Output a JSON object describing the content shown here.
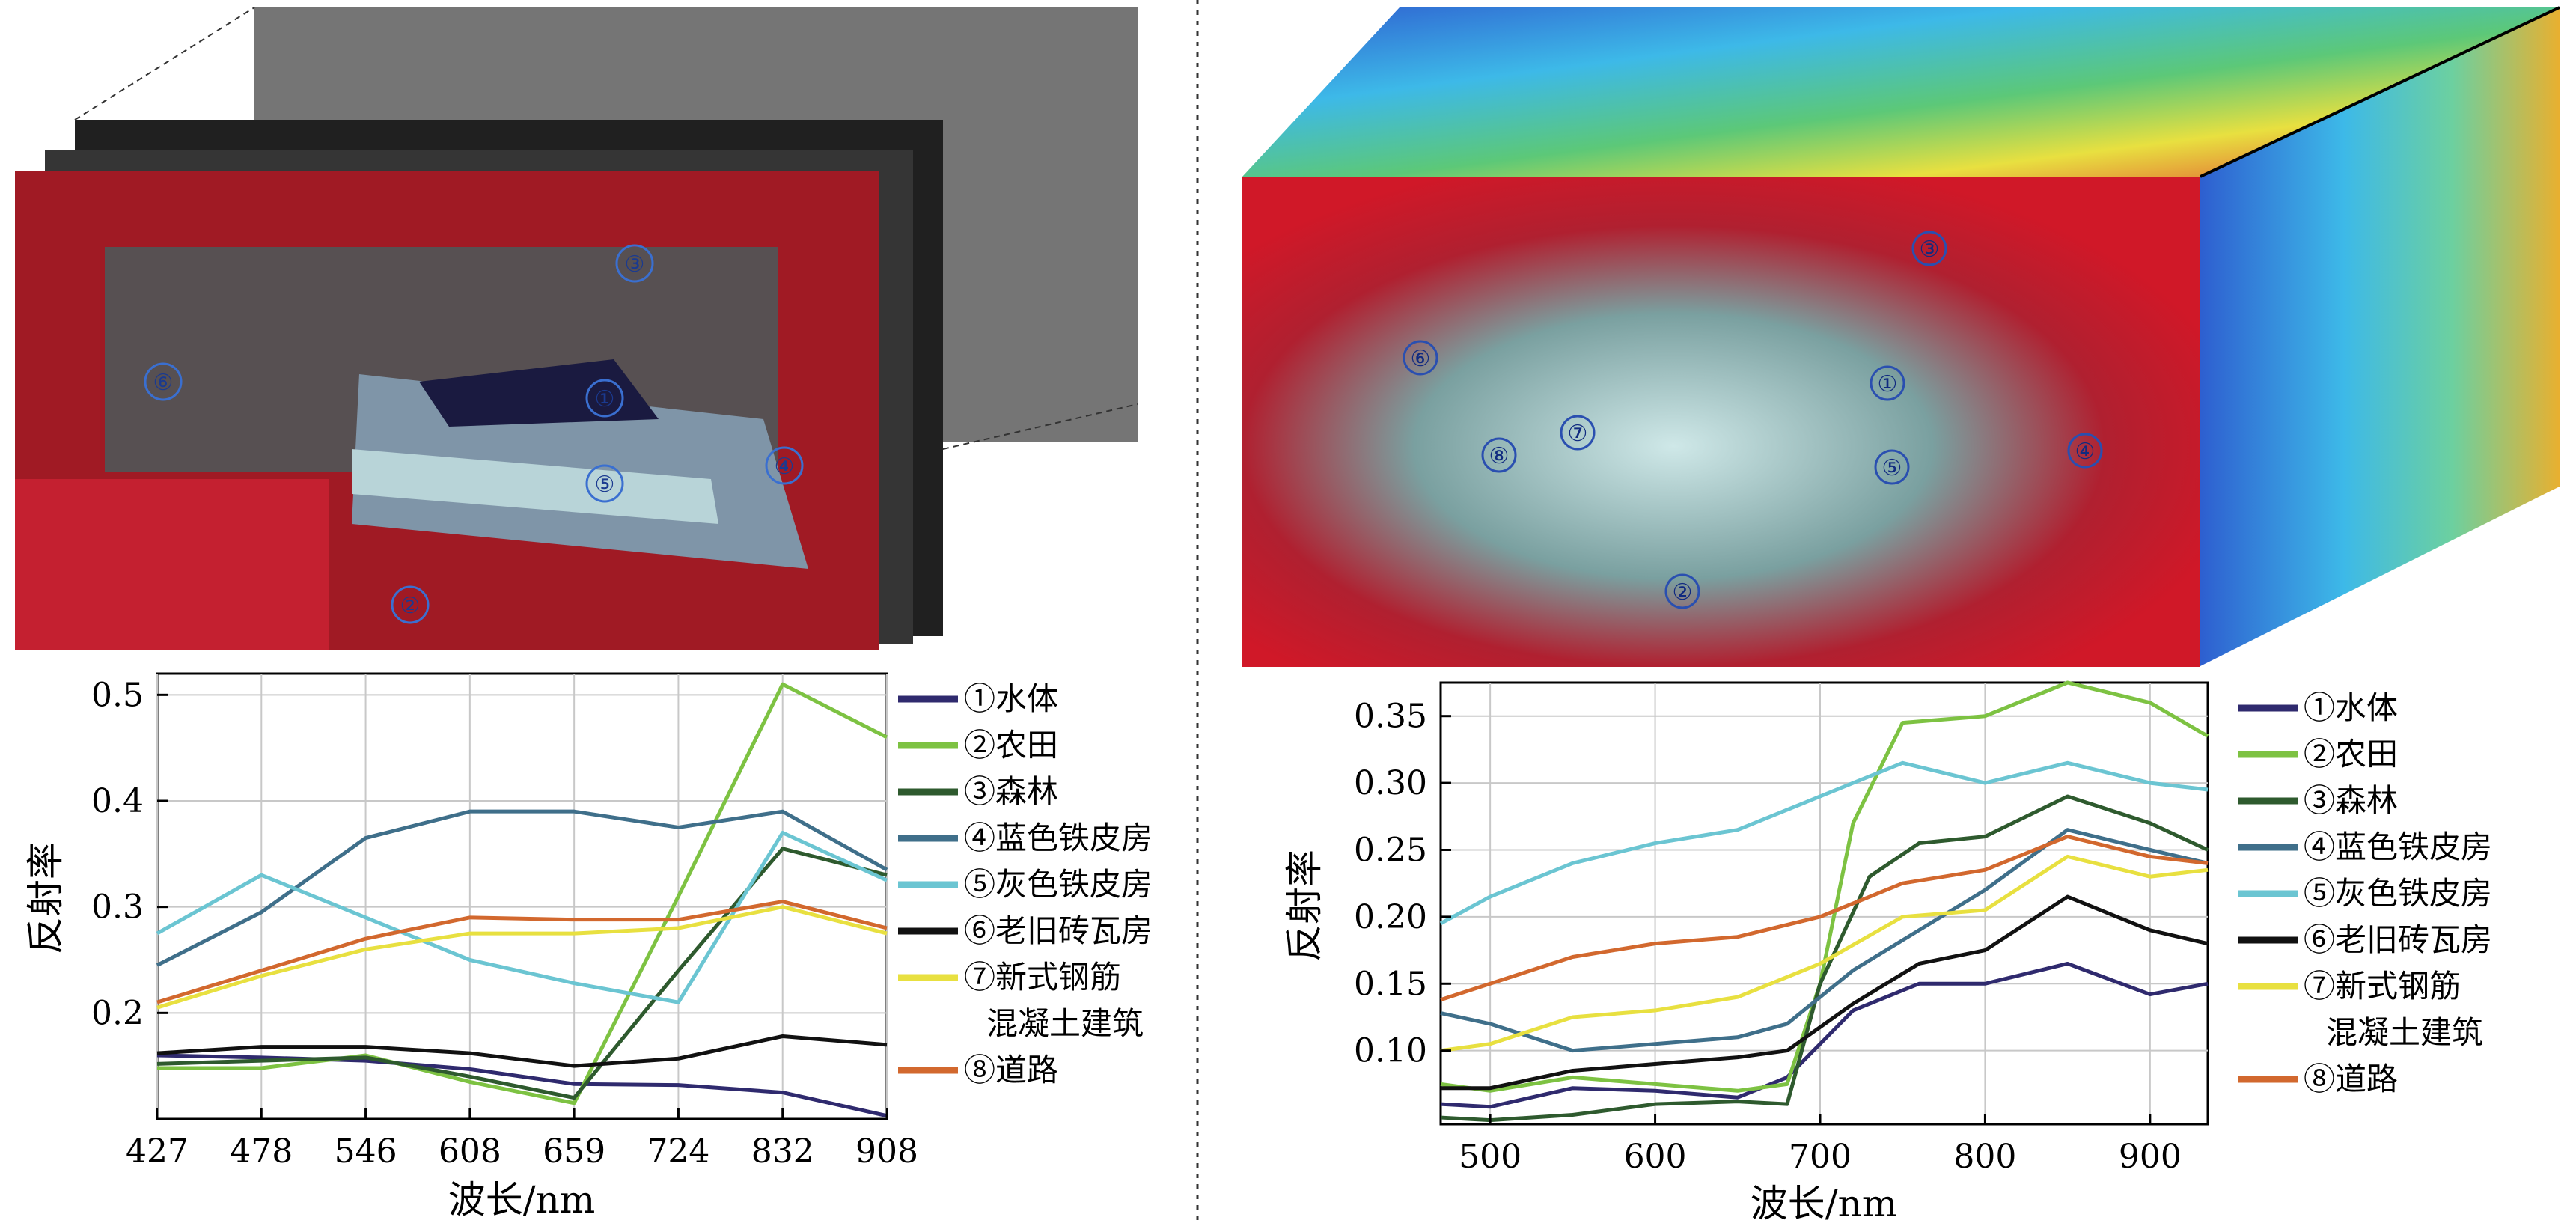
{
  "chart_data": [
    {
      "type": "line",
      "xlabel": "波长/nm",
      "ylabel": "反射率",
      "ylim": [
        0.1,
        0.52
      ],
      "x_categories": [
        "427",
        "478",
        "546",
        "608",
        "659",
        "724",
        "832",
        "908"
      ],
      "y_ticks": [
        "0.5",
        "0.4",
        "0.3",
        "0.2"
      ],
      "grid": true,
      "legend_position": "right",
      "series": [
        {
          "name": "①水体",
          "color": "#2f2a6e",
          "values": [
            0.16,
            0.158,
            0.155,
            0.147,
            0.133,
            0.132,
            0.125,
            0.103
          ]
        },
        {
          "name": "②农田",
          "color": "#7dc242",
          "values": [
            0.148,
            0.148,
            0.16,
            0.135,
            0.115,
            0.31,
            0.51,
            0.46
          ]
        },
        {
          "name": "③森林",
          "color": "#2e5a2e",
          "values": [
            0.152,
            0.155,
            0.158,
            0.14,
            0.12,
            0.24,
            0.355,
            0.33
          ]
        },
        {
          "name": "④蓝色铁皮房",
          "color": "#3f6f8a",
          "values": [
            0.245,
            0.295,
            0.365,
            0.39,
            0.39,
            0.375,
            0.39,
            0.335
          ]
        },
        {
          "name": "⑤灰色铁皮房",
          "color": "#6bc5d2",
          "values": [
            0.275,
            0.33,
            0.29,
            0.25,
            0.228,
            0.21,
            0.37,
            0.325
          ]
        },
        {
          "name": "⑥老旧砖瓦房",
          "color": "#111111",
          "values": [
            0.162,
            0.168,
            0.168,
            0.162,
            0.15,
            0.157,
            0.178,
            0.17
          ]
        },
        {
          "name": "⑦新式钢筋\n混凝土建筑",
          "color": "#e8e040",
          "values": [
            0.205,
            0.235,
            0.26,
            0.275,
            0.275,
            0.28,
            0.3,
            0.275
          ]
        },
        {
          "name": "⑧道路",
          "color": "#d2682e",
          "values": [
            0.21,
            0.24,
            0.27,
            0.29,
            0.288,
            0.288,
            0.305,
            0.28
          ]
        }
      ]
    },
    {
      "type": "line",
      "xlabel": "波长/nm",
      "ylabel": "反射率",
      "xlim": [
        470,
        935
      ],
      "ylim": [
        0.045,
        0.375
      ],
      "x_ticks": [
        "500",
        "600",
        "700",
        "800",
        "900"
      ],
      "y_ticks": [
        "0.35",
        "0.30",
        "0.25",
        "0.20",
        "0.15",
        "0.10"
      ],
      "grid": true,
      "legend_position": "right",
      "series": [
        {
          "name": "①水体",
          "color": "#2f2a6e",
          "x": [
            470,
            500,
            550,
            600,
            650,
            680,
            720,
            760,
            800,
            850,
            900,
            935
          ],
          "y": [
            0.06,
            0.058,
            0.072,
            0.07,
            0.065,
            0.08,
            0.13,
            0.15,
            0.15,
            0.165,
            0.142,
            0.15
          ]
        },
        {
          "name": "②农田",
          "color": "#7dc242",
          "x": [
            470,
            500,
            550,
            600,
            650,
            680,
            700,
            720,
            750,
            800,
            850,
            900,
            935
          ],
          "y": [
            0.075,
            0.07,
            0.08,
            0.075,
            0.07,
            0.075,
            0.15,
            0.27,
            0.345,
            0.35,
            0.375,
            0.36,
            0.335
          ]
        },
        {
          "name": "③森林",
          "color": "#2e5a2e",
          "x": [
            470,
            500,
            550,
            600,
            650,
            680,
            700,
            730,
            760,
            800,
            850,
            900,
            935
          ],
          "y": [
            0.05,
            0.048,
            0.052,
            0.06,
            0.062,
            0.06,
            0.15,
            0.23,
            0.255,
            0.26,
            0.29,
            0.27,
            0.25
          ]
        },
        {
          "name": "④蓝色铁皮房",
          "color": "#3f6f8a",
          "x": [
            470,
            500,
            550,
            600,
            650,
            680,
            720,
            760,
            800,
            850,
            900,
            935
          ],
          "y": [
            0.128,
            0.12,
            0.1,
            0.105,
            0.11,
            0.12,
            0.16,
            0.19,
            0.22,
            0.265,
            0.25,
            0.24
          ]
        },
        {
          "name": "⑤灰色铁皮房",
          "color": "#6bc5d2",
          "x": [
            470,
            500,
            550,
            600,
            650,
            700,
            750,
            800,
            850,
            900,
            935
          ],
          "y": [
            0.195,
            0.215,
            0.24,
            0.255,
            0.265,
            0.29,
            0.315,
            0.3,
            0.315,
            0.3,
            0.295
          ]
        },
        {
          "name": "⑥老旧砖瓦房",
          "color": "#111111",
          "x": [
            470,
            500,
            550,
            600,
            650,
            680,
            720,
            760,
            800,
            850,
            900,
            935
          ],
          "y": [
            0.072,
            0.072,
            0.085,
            0.09,
            0.095,
            0.1,
            0.135,
            0.165,
            0.175,
            0.215,
            0.19,
            0.18
          ]
        },
        {
          "name": "⑦新式钢筋\n混凝土建筑",
          "color": "#e8e040",
          "x": [
            470,
            500,
            550,
            600,
            650,
            700,
            750,
            800,
            850,
            900,
            935
          ],
          "y": [
            0.1,
            0.105,
            0.125,
            0.13,
            0.14,
            0.165,
            0.2,
            0.205,
            0.245,
            0.23,
            0.235
          ]
        },
        {
          "name": "⑧道路",
          "color": "#d2682e",
          "x": [
            470,
            500,
            550,
            600,
            650,
            700,
            750,
            800,
            850,
            900,
            935
          ],
          "y": [
            0.138,
            0.15,
            0.17,
            0.18,
            0.185,
            0.2,
            0.225,
            0.235,
            0.26,
            0.245,
            0.24
          ]
        }
      ]
    }
  ],
  "left_image": {
    "region_labels": [
      "①",
      "②",
      "③",
      "④",
      "⑤",
      "⑥"
    ]
  },
  "right_image": {
    "region_labels": [
      "①",
      "②",
      "③",
      "④",
      "⑤",
      "⑥",
      "⑦",
      "⑧"
    ]
  }
}
